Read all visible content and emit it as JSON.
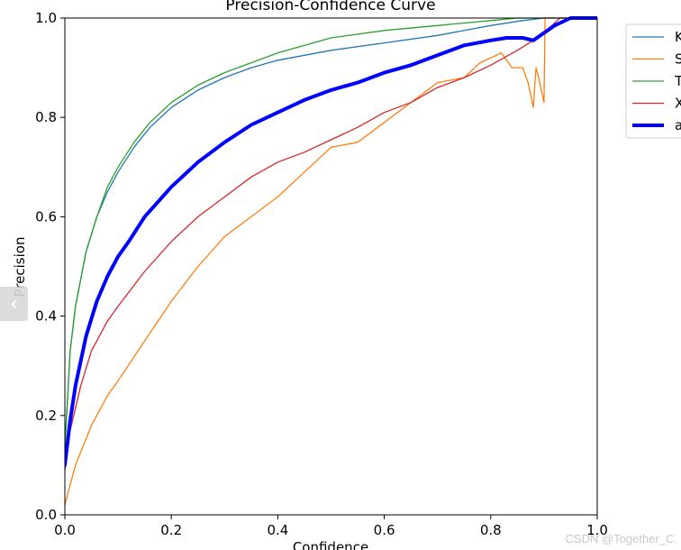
{
  "chart_data": {
    "type": "line",
    "title": "Precision-Confidence Curve",
    "xlabel": "Confidence",
    "ylabel": "Precision",
    "xlim": [
      0,
      1
    ],
    "ylim": [
      0,
      1
    ],
    "xticks": [
      "0.0",
      "0.2",
      "0.4",
      "0.6",
      "0.8",
      "1.0"
    ],
    "yticks": [
      "0.0",
      "0.2",
      "0.4",
      "0.6",
      "0.8",
      "1.0"
    ],
    "grid": false,
    "legend_placement": "outside-top-right",
    "series": [
      {
        "name": "K",
        "color": "#1f77b4",
        "width": 1.3,
        "x": [
          0,
          0.01,
          0.02,
          0.04,
          0.06,
          0.08,
          0.1,
          0.13,
          0.16,
          0.2,
          0.25,
          0.3,
          0.35,
          0.4,
          0.5,
          0.6,
          0.7,
          0.8,
          0.86,
          0.9,
          0.95,
          1.0
        ],
        "y": [
          0.14,
          0.33,
          0.42,
          0.53,
          0.6,
          0.65,
          0.69,
          0.74,
          0.78,
          0.82,
          0.855,
          0.88,
          0.9,
          0.915,
          0.935,
          0.95,
          0.965,
          0.985,
          0.995,
          1.0,
          1.0,
          1.0
        ]
      },
      {
        "name": "S",
        "color": "#ff7f0e",
        "width": 1.3,
        "x": [
          0,
          0.02,
          0.05,
          0.08,
          0.1,
          0.15,
          0.2,
          0.25,
          0.3,
          0.35,
          0.4,
          0.45,
          0.5,
          0.55,
          0.6,
          0.65,
          0.7,
          0.75,
          0.78,
          0.8,
          0.82,
          0.84,
          0.86,
          0.87,
          0.88,
          0.885,
          0.89,
          0.9,
          0.902,
          0.905,
          0.92
        ],
        "y": [
          0.02,
          0.1,
          0.18,
          0.24,
          0.27,
          0.35,
          0.43,
          0.5,
          0.56,
          0.6,
          0.64,
          0.69,
          0.74,
          0.75,
          0.79,
          0.83,
          0.87,
          0.88,
          0.91,
          0.92,
          0.93,
          0.9,
          0.9,
          0.87,
          0.82,
          0.9,
          0.88,
          0.83,
          1.0,
          1.0,
          1.0
        ]
      },
      {
        "name": "T",
        "color": "#2ca02c",
        "width": 1.3,
        "x": [
          0,
          0.01,
          0.02,
          0.04,
          0.06,
          0.08,
          0.1,
          0.13,
          0.16,
          0.2,
          0.25,
          0.3,
          0.35,
          0.4,
          0.5,
          0.6,
          0.7,
          0.8,
          0.85,
          0.9,
          1.0
        ],
        "y": [
          0.13,
          0.33,
          0.42,
          0.53,
          0.6,
          0.66,
          0.7,
          0.75,
          0.79,
          0.83,
          0.865,
          0.89,
          0.91,
          0.93,
          0.96,
          0.975,
          0.985,
          0.995,
          1.0,
          1.0,
          1.0
        ]
      },
      {
        "name": "X",
        "color": "#d62728",
        "width": 1.3,
        "x": [
          0,
          0.01,
          0.03,
          0.05,
          0.08,
          0.1,
          0.15,
          0.2,
          0.25,
          0.3,
          0.35,
          0.4,
          0.45,
          0.5,
          0.55,
          0.6,
          0.65,
          0.7,
          0.75,
          0.8,
          0.85,
          0.88,
          0.9,
          0.93,
          1.0
        ],
        "y": [
          0.09,
          0.17,
          0.26,
          0.33,
          0.39,
          0.42,
          0.49,
          0.55,
          0.6,
          0.64,
          0.68,
          0.71,
          0.73,
          0.755,
          0.78,
          0.81,
          0.83,
          0.86,
          0.88,
          0.905,
          0.935,
          0.955,
          0.97,
          1.0,
          1.0
        ]
      },
      {
        "name": "a",
        "color": "#0000ff",
        "width": 4,
        "x": [
          0,
          0.01,
          0.02,
          0.04,
          0.06,
          0.08,
          0.1,
          0.12,
          0.15,
          0.2,
          0.25,
          0.3,
          0.35,
          0.4,
          0.45,
          0.5,
          0.55,
          0.6,
          0.65,
          0.7,
          0.75,
          0.8,
          0.83,
          0.86,
          0.88,
          0.9,
          0.92,
          0.95,
          1.0
        ],
        "y": [
          0.1,
          0.19,
          0.26,
          0.36,
          0.43,
          0.48,
          0.52,
          0.55,
          0.6,
          0.66,
          0.71,
          0.75,
          0.785,
          0.81,
          0.835,
          0.855,
          0.87,
          0.89,
          0.905,
          0.925,
          0.945,
          0.955,
          0.96,
          0.96,
          0.955,
          0.97,
          0.985,
          1.0,
          1.0
        ]
      }
    ]
  },
  "nav_button": {
    "glyph": "‹"
  },
  "watermark": {
    "text": "CSDN @Together_C."
  }
}
